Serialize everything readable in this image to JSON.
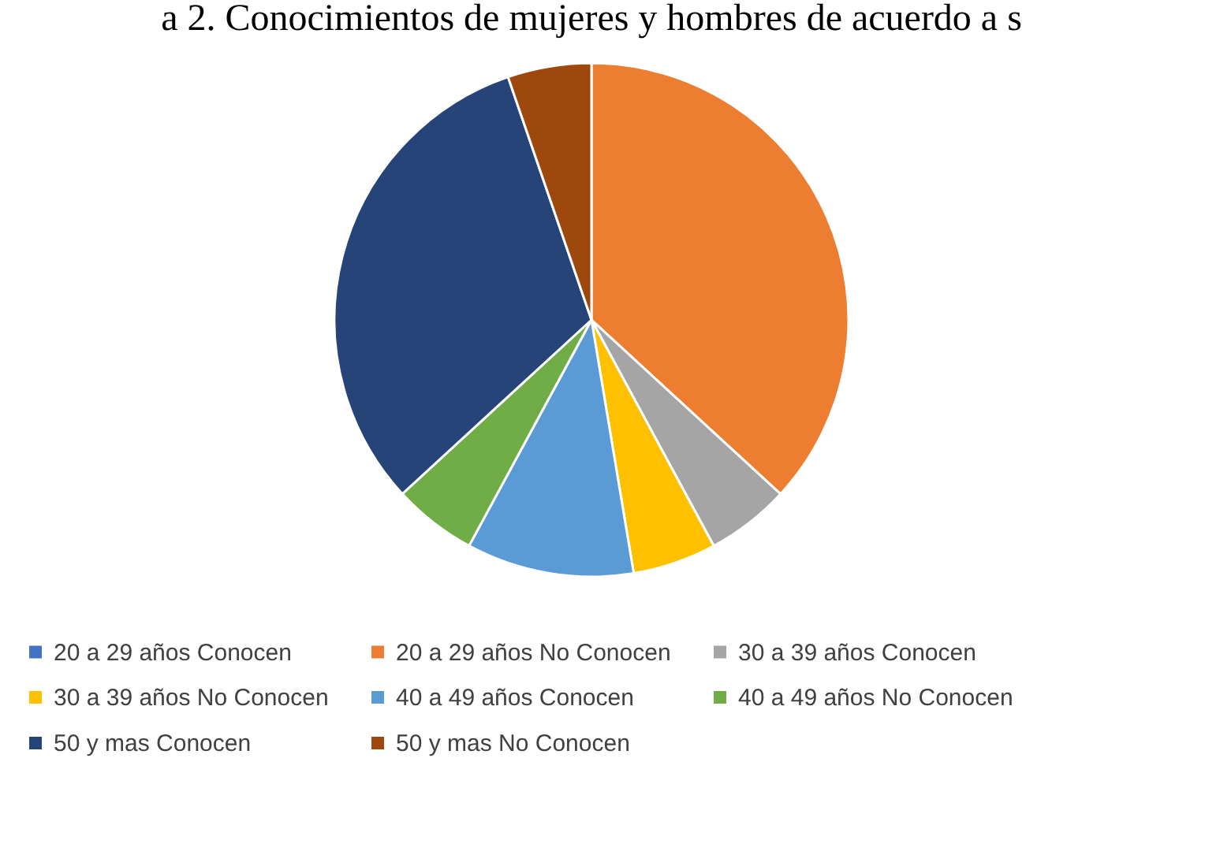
{
  "chart_data": {
    "type": "pie",
    "title": "a 2. Conocimientos de mujeres y hombres de acuerdo a s",
    "categories": [
      "20 a 29 años Conocen",
      "20 a 29 años No Conocen",
      "30 a 39 años Conocen",
      "30 a 39 años No Conocen",
      "40 a 49 años Conocen",
      "40 a 49 años No Conocen",
      "50 y mas Conocen",
      "50 y mas No Conocen"
    ],
    "values": [
      0,
      36.85,
      5.26,
      5.26,
      10.53,
      5.26,
      31.58,
      5.26
    ],
    "colors": [
      "#4472c4",
      "#ed7d31",
      "#a5a5a5",
      "#ffc000",
      "#5b9bd5",
      "#70ad47",
      "#264478",
      "#9e480e"
    ],
    "legend": "bottom"
  }
}
